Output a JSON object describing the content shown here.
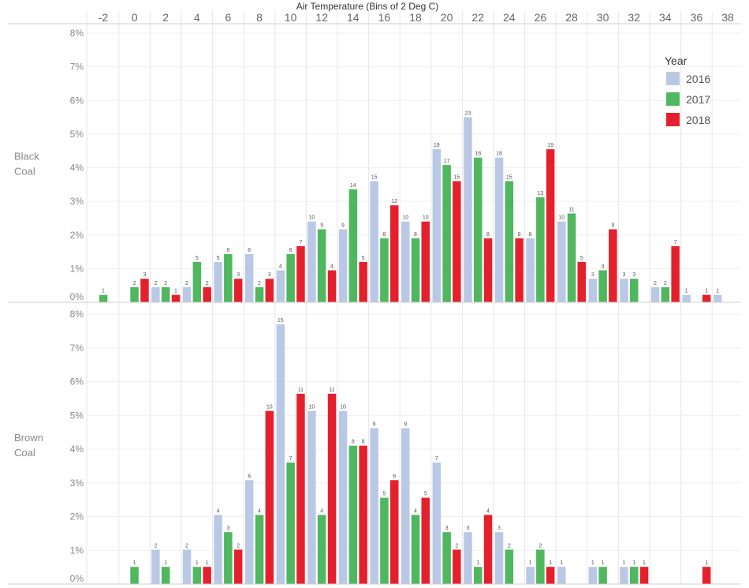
{
  "chart_data": {
    "type": "bar",
    "title": "Air Temperature (Bins of 2 Deg C)",
    "x_ticks": [
      "-2",
      "0",
      "2",
      "4",
      "6",
      "8",
      "10",
      "12",
      "14",
      "16",
      "18",
      "20",
      "22",
      "24",
      "26",
      "28",
      "30",
      "32",
      "34",
      "36",
      "38"
    ],
    "y_ticks": [
      "0%",
      "1%",
      "2%",
      "3%",
      "4%",
      "5%",
      "6%",
      "7%",
      "8%"
    ],
    "ylim": [
      0,
      8
    ],
    "grid": true,
    "legend": {
      "title": "Year",
      "placement": "top-right",
      "entries": [
        {
          "name": "2016",
          "color": "#b9c8e4"
        },
        {
          "name": "2017",
          "color": "#4fb75e"
        },
        {
          "name": "2018",
          "color": "#e5202d"
        }
      ]
    },
    "panels": [
      {
        "label_lines": [
          "Black",
          "Coal"
        ],
        "series": [
          {
            "name": "2016",
            "points": [
              {
                "x": 2,
                "y": 0.45,
                "label": "2"
              },
              {
                "x": 4,
                "y": 0.45,
                "label": "2"
              },
              {
                "x": 6,
                "y": 1.2,
                "label": "5"
              },
              {
                "x": 8,
                "y": 1.43,
                "label": "6"
              },
              {
                "x": 10,
                "y": 0.95,
                "label": "4"
              },
              {
                "x": 12,
                "y": 2.4,
                "label": "10"
              },
              {
                "x": 14,
                "y": 2.17,
                "label": "9"
              },
              {
                "x": 16,
                "y": 3.6,
                "label": "15"
              },
              {
                "x": 18,
                "y": 2.4,
                "label": "10"
              },
              {
                "x": 20,
                "y": 4.55,
                "label": "19"
              },
              {
                "x": 22,
                "y": 5.5,
                "label": "23"
              },
              {
                "x": 24,
                "y": 4.3,
                "label": "18"
              },
              {
                "x": 26,
                "y": 1.9,
                "label": "8"
              },
              {
                "x": 28,
                "y": 2.4,
                "label": "10"
              },
              {
                "x": 30,
                "y": 0.7,
                "label": "3"
              },
              {
                "x": 32,
                "y": 0.7,
                "label": "3"
              },
              {
                "x": 34,
                "y": 0.45,
                "label": "2"
              },
              {
                "x": 36,
                "y": 0.22,
                "label": "1"
              },
              {
                "x": 38,
                "y": 0.22,
                "label": "1"
              }
            ]
          },
          {
            "name": "2017",
            "points": [
              {
                "x": -2,
                "y": 0.22,
                "label": "1"
              },
              {
                "x": 0,
                "y": 0.45,
                "label": "2"
              },
              {
                "x": 2,
                "y": 0.45,
                "label": "2"
              },
              {
                "x": 4,
                "y": 1.2,
                "label": "5"
              },
              {
                "x": 6,
                "y": 1.43,
                "label": "6"
              },
              {
                "x": 8,
                "y": 0.45,
                "label": "2"
              },
              {
                "x": 10,
                "y": 1.43,
                "label": "6"
              },
              {
                "x": 12,
                "y": 2.17,
                "label": "9"
              },
              {
                "x": 14,
                "y": 3.36,
                "label": "14"
              },
              {
                "x": 16,
                "y": 1.9,
                "label": "8"
              },
              {
                "x": 18,
                "y": 1.9,
                "label": "8"
              },
              {
                "x": 20,
                "y": 4.08,
                "label": "17"
              },
              {
                "x": 22,
                "y": 4.3,
                "label": "18"
              },
              {
                "x": 24,
                "y": 3.6,
                "label": "15"
              },
              {
                "x": 26,
                "y": 3.12,
                "label": "13"
              },
              {
                "x": 28,
                "y": 2.64,
                "label": "11"
              },
              {
                "x": 30,
                "y": 0.95,
                "label": "4"
              },
              {
                "x": 32,
                "y": 0.7,
                "label": "3"
              },
              {
                "x": 34,
                "y": 0.45,
                "label": "2"
              }
            ]
          },
          {
            "name": "2018",
            "points": [
              {
                "x": 0,
                "y": 0.7,
                "label": "3"
              },
              {
                "x": 2,
                "y": 0.22,
                "label": "1"
              },
              {
                "x": 4,
                "y": 0.45,
                "label": "2"
              },
              {
                "x": 6,
                "y": 0.7,
                "label": "3"
              },
              {
                "x": 8,
                "y": 0.7,
                "label": "3"
              },
              {
                "x": 10,
                "y": 1.67,
                "label": "7"
              },
              {
                "x": 12,
                "y": 0.95,
                "label": "4"
              },
              {
                "x": 14,
                "y": 1.2,
                "label": "5"
              },
              {
                "x": 16,
                "y": 2.88,
                "label": "12"
              },
              {
                "x": 18,
                "y": 2.4,
                "label": "10"
              },
              {
                "x": 20,
                "y": 3.6,
                "label": "15"
              },
              {
                "x": 22,
                "y": 1.9,
                "label": "8"
              },
              {
                "x": 24,
                "y": 1.9,
                "label": "8"
              },
              {
                "x": 26,
                "y": 4.55,
                "label": "19"
              },
              {
                "x": 28,
                "y": 1.2,
                "label": "5"
              },
              {
                "x": 30,
                "y": 2.17,
                "label": "9"
              },
              {
                "x": 34,
                "y": 1.67,
                "label": "7"
              },
              {
                "x": 36,
                "y": 0.22,
                "label": "1"
              }
            ]
          }
        ]
      },
      {
        "label_lines": [
          "Brown",
          "Coal"
        ],
        "series": [
          {
            "name": "2016",
            "points": [
              {
                "x": 2,
                "y": 1.02,
                "label": "2"
              },
              {
                "x": 4,
                "y": 1.02,
                "label": "2"
              },
              {
                "x": 6,
                "y": 2.05,
                "label": "4"
              },
              {
                "x": 8,
                "y": 3.08,
                "label": "6"
              },
              {
                "x": 10,
                "y": 7.7,
                "label": "15"
              },
              {
                "x": 12,
                "y": 5.13,
                "label": "10"
              },
              {
                "x": 14,
                "y": 5.13,
                "label": "10"
              },
              {
                "x": 16,
                "y": 4.62,
                "label": "9"
              },
              {
                "x": 18,
                "y": 4.62,
                "label": "9"
              },
              {
                "x": 20,
                "y": 3.6,
                "label": "7"
              },
              {
                "x": 22,
                "y": 1.54,
                "label": "3"
              },
              {
                "x": 24,
                "y": 1.54,
                "label": "3"
              },
              {
                "x": 26,
                "y": 0.51,
                "label": "1"
              },
              {
                "x": 28,
                "y": 0.51,
                "label": "1"
              },
              {
                "x": 30,
                "y": 0.51,
                "label": "1"
              },
              {
                "x": 32,
                "y": 0.51,
                "label": "1"
              }
            ]
          },
          {
            "name": "2017",
            "points": [
              {
                "x": 0,
                "y": 0.51,
                "label": "1"
              },
              {
                "x": 2,
                "y": 0.51,
                "label": "1"
              },
              {
                "x": 4,
                "y": 0.51,
                "label": "1"
              },
              {
                "x": 6,
                "y": 1.54,
                "label": "3"
              },
              {
                "x": 8,
                "y": 2.05,
                "label": "4"
              },
              {
                "x": 10,
                "y": 3.6,
                "label": "7"
              },
              {
                "x": 12,
                "y": 2.05,
                "label": "4"
              },
              {
                "x": 14,
                "y": 4.1,
                "label": "8"
              },
              {
                "x": 16,
                "y": 2.56,
                "label": "5"
              },
              {
                "x": 18,
                "y": 2.05,
                "label": "4"
              },
              {
                "x": 20,
                "y": 1.54,
                "label": "3"
              },
              {
                "x": 22,
                "y": 0.51,
                "label": "1"
              },
              {
                "x": 24,
                "y": 1.02,
                "label": "2"
              },
              {
                "x": 26,
                "y": 1.02,
                "label": "2"
              },
              {
                "x": 30,
                "y": 0.51,
                "label": "1"
              },
              {
                "x": 32,
                "y": 0.51,
                "label": "1"
              }
            ]
          },
          {
            "name": "2018",
            "points": [
              {
                "x": 4,
                "y": 0.51,
                "label": "1"
              },
              {
                "x": 6,
                "y": 1.02,
                "label": "2"
              },
              {
                "x": 8,
                "y": 5.13,
                "label": "10"
              },
              {
                "x": 10,
                "y": 5.64,
                "label": "11"
              },
              {
                "x": 12,
                "y": 5.64,
                "label": "11"
              },
              {
                "x": 14,
                "y": 4.1,
                "label": "8"
              },
              {
                "x": 16,
                "y": 3.08,
                "label": "6"
              },
              {
                "x": 18,
                "y": 2.56,
                "label": "5"
              },
              {
                "x": 20,
                "y": 1.02,
                "label": "2"
              },
              {
                "x": 22,
                "y": 2.05,
                "label": "4"
              },
              {
                "x": 26,
                "y": 0.51,
                "label": "1"
              },
              {
                "x": 32,
                "y": 0.51,
                "label": "1"
              },
              {
                "x": 36,
                "y": 0.51,
                "label": "1"
              }
            ]
          }
        ]
      }
    ]
  }
}
